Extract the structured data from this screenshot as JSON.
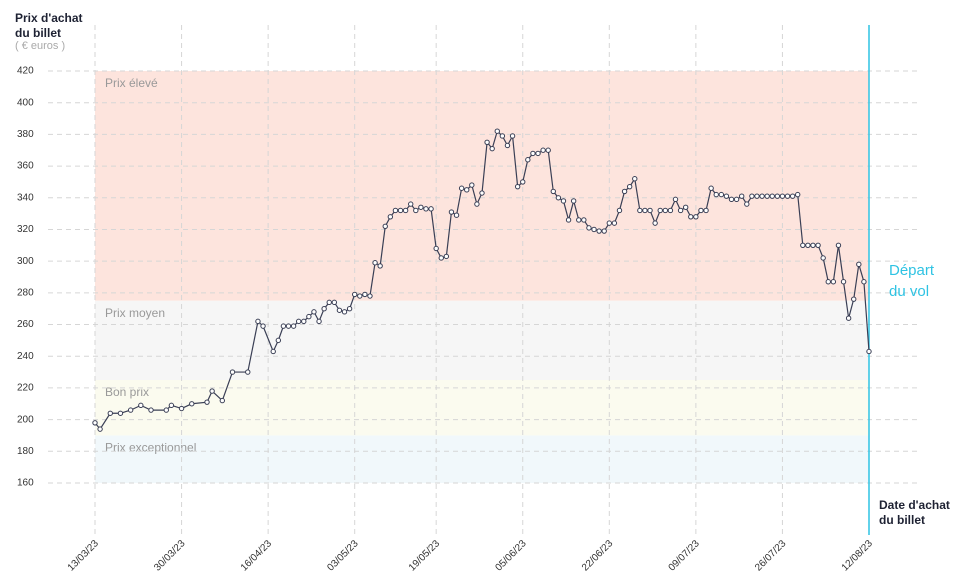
{
  "chart_data": {
    "type": "line",
    "y_title": "Prix d'achat du billet",
    "y_unit": "( € euros )",
    "x_title": "Date d'achat du billet",
    "color": "#3a3f55",
    "grid": true,
    "ylim": [
      160,
      420
    ],
    "yticks": [
      160,
      180,
      200,
      220,
      240,
      260,
      280,
      300,
      320,
      340,
      360,
      380,
      400,
      420
    ],
    "xlim": [
      "13/03/23",
      "12/08/23"
    ],
    "xticks": [
      "13/03/23",
      "30/03/23",
      "16/04/23",
      "03/05/23",
      "19/05/23",
      "05/06/23",
      "22/06/23",
      "09/07/23",
      "26/07/23",
      "12/08/23"
    ],
    "bands": [
      {
        "label": "Prix élevé",
        "from": 275,
        "to": 420,
        "color": "#fde4dd"
      },
      {
        "label": "Prix moyen",
        "from": 225,
        "to": 275,
        "color": "#f6f6f6"
      },
      {
        "label": "Bon prix",
        "from": 190,
        "to": 225,
        "color": "#fbfbef"
      },
      {
        "label": "Prix exceptionnel",
        "from": 160,
        "to": 190,
        "color": "#f1f8fb"
      }
    ],
    "departure": {
      "label": "Départ du vol",
      "x": "12/08/23",
      "color": "#2fc3e3"
    },
    "x": [
      "13/03/23",
      "14/03/23",
      "16/03/23",
      "18/03/23",
      "20/03/23",
      "22/03/23",
      "24/03/23",
      "27/03/23",
      "28/03/23",
      "30/03/23",
      "01/04/23",
      "04/04/23",
      "05/04/23",
      "07/04/23",
      "09/04/23",
      "12/04/23",
      "14/04/23",
      "15/04/23",
      "17/04/23",
      "18/04/23",
      "19/04/23",
      "20/04/23",
      "21/04/23",
      "22/04/23",
      "23/04/23",
      "24/04/23",
      "25/04/23",
      "26/04/23",
      "27/04/23",
      "28/04/23",
      "29/04/23",
      "30/04/23",
      "01/05/23",
      "02/05/23",
      "03/05/23",
      "04/05/23",
      "05/05/23",
      "06/05/23",
      "07/05/23",
      "08/05/23",
      "09/05/23",
      "10/05/23",
      "11/05/23",
      "12/05/23",
      "13/05/23",
      "14/05/23",
      "15/05/23",
      "16/05/23",
      "17/05/23",
      "18/05/23",
      "19/05/23",
      "20/05/23",
      "21/05/23",
      "22/05/23",
      "23/05/23",
      "24/05/23",
      "25/05/23",
      "26/05/23",
      "27/05/23",
      "28/05/23",
      "29/05/23",
      "30/05/23",
      "31/05/23",
      "01/06/23",
      "02/06/23",
      "03/06/23",
      "04/06/23",
      "05/06/23",
      "06/06/23",
      "07/06/23",
      "08/06/23",
      "09/06/23",
      "10/06/23",
      "11/06/23",
      "12/06/23",
      "13/06/23",
      "14/06/23",
      "15/06/23",
      "16/06/23",
      "17/06/23",
      "18/06/23",
      "19/06/23",
      "20/06/23",
      "21/06/23",
      "22/06/23",
      "23/06/23",
      "24/06/23",
      "25/06/23",
      "26/06/23",
      "27/06/23",
      "28/06/23",
      "29/06/23",
      "30/06/23",
      "01/07/23",
      "02/07/23",
      "03/07/23",
      "04/07/23",
      "05/07/23",
      "06/07/23",
      "07/07/23",
      "08/07/23",
      "09/07/23",
      "10/07/23",
      "11/07/23",
      "12/07/23",
      "13/07/23",
      "14/07/23",
      "15/07/23",
      "16/07/23",
      "17/07/23",
      "18/07/23",
      "19/07/23",
      "20/07/23",
      "21/07/23",
      "22/07/23",
      "23/07/23",
      "24/07/23",
      "25/07/23",
      "26/07/23",
      "27/07/23",
      "28/07/23",
      "29/07/23",
      "30/07/23",
      "31/07/23",
      "01/08/23",
      "02/08/23",
      "03/08/23",
      "04/08/23",
      "05/08/23",
      "06/08/23",
      "07/08/23",
      "08/08/23",
      "09/08/23",
      "10/08/23",
      "11/08/23",
      "12/08/23"
    ],
    "values": [
      198,
      194,
      204,
      204,
      206,
      209,
      206,
      206,
      209,
      207,
      210,
      211,
      218,
      212,
      230,
      230,
      262,
      259,
      243,
      250,
      259,
      259,
      259,
      262,
      262,
      265,
      268,
      262,
      270,
      274,
      274,
      269,
      268,
      270,
      279,
      278,
      279,
      278,
      299,
      297,
      322,
      328,
      332,
      332,
      332,
      336,
      332,
      334,
      333,
      333,
      308,
      302,
      303,
      331,
      329,
      346,
      345,
      348,
      336,
      343,
      375,
      371,
      382,
      379,
      373,
      379,
      347,
      350,
      364,
      368,
      368,
      370,
      370,
      344,
      340,
      338,
      326,
      338,
      326,
      326,
      321,
      320,
      319,
      319,
      324,
      324,
      332,
      344,
      347,
      352,
      332,
      332,
      332,
      324,
      332,
      332,
      332,
      339,
      332,
      334,
      328,
      328,
      332,
      332,
      346,
      342,
      342,
      341,
      339,
      339,
      341,
      336,
      341,
      341,
      341,
      341,
      341,
      341,
      341,
      341,
      341,
      342,
      310,
      310,
      310,
      310,
      302,
      287,
      287,
      310,
      287,
      264,
      276,
      298,
      287,
      243
    ]
  }
}
